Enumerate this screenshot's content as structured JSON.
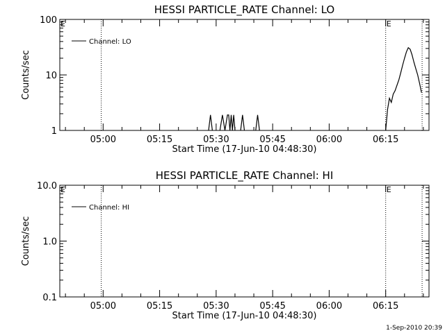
{
  "chart_data": [
    {
      "type": "line",
      "title": "HESSI PARTICLE_RATE Channel: LO",
      "xlabel": "Start Time (17-Jun-10 04:48:30)",
      "ylabel": "Counts/sec",
      "yscale": "log",
      "ylim": [
        1,
        100
      ],
      "yticks": [
        1,
        10,
        100
      ],
      "ytick_labels": [
        "1",
        "10",
        "100"
      ],
      "xlim": [
        "04:48:30",
        "06:26:30"
      ],
      "xticks": [
        "05:00",
        "05:15",
        "05:30",
        "05:45",
        "06:00",
        "06:15"
      ],
      "legend": {
        "position": "top-left",
        "entries": [
          "Channel: LO"
        ]
      },
      "vlines": [
        "04:59:30",
        "06:15:00",
        "06:24:40"
      ],
      "flags": [
        {
          "at": "04:48:30",
          "label": "E"
        },
        {
          "at": "06:15:00",
          "label": "E"
        }
      ],
      "series": [
        {
          "name": "Channel: LO",
          "segments": [
            {
              "x": [
                "05:28:00",
                "05:28:30",
                "05:29:00"
              ],
              "y": [
                1,
                1.9,
                1
              ]
            },
            {
              "x": [
                "05:31:00",
                "05:31:40",
                "05:32:20",
                "05:33:00",
                "05:33:20",
                "05:33:40",
                "05:34:00",
                "05:34:20",
                "05:34:40",
                "05:35:00"
              ],
              "y": [
                1,
                1.9,
                1,
                1.9,
                1.9,
                1,
                1.9,
                1,
                1.9,
                1
              ]
            },
            {
              "x": [
                "05:36:30",
                "05:37:00",
                "05:37:30"
              ],
              "y": [
                1,
                1.9,
                1
              ]
            },
            {
              "x": [
                "05:40:30",
                "05:41:00",
                "05:41:30"
              ],
              "y": [
                1,
                1.9,
                1
              ]
            },
            {
              "x": [
                "06:15:00",
                "06:15:30",
                "06:16:00",
                "06:16:30",
                "06:17:00",
                "06:17:30",
                "06:18:00",
                "06:18:30",
                "06:19:00",
                "06:19:30",
                "06:20:00",
                "06:20:30",
                "06:21:00",
                "06:21:30",
                "06:22:00",
                "06:22:30",
                "06:23:00",
                "06:23:30",
                "06:24:00",
                "06:24:30"
              ],
              "y": [
                1,
                2.4,
                3.8,
                3.2,
                4.5,
                5.2,
                6.5,
                8.2,
                11,
                15,
                20,
                26,
                31,
                29,
                23,
                17,
                13,
                10,
                7,
                4.8
              ]
            }
          ]
        }
      ]
    },
    {
      "type": "line",
      "title": "HESSI PARTICLE_RATE Channel: HI",
      "xlabel": "Start Time (17-Jun-10 04:48:30)",
      "ylabel": "Counts/sec",
      "yscale": "log",
      "ylim": [
        0.1,
        10
      ],
      "yticks": [
        0.1,
        1,
        10
      ],
      "ytick_labels": [
        "0.1",
        "1.0",
        "10.0"
      ],
      "xlim": [
        "04:48:30",
        "06:26:30"
      ],
      "xticks": [
        "05:00",
        "05:15",
        "05:30",
        "05:45",
        "06:00",
        "06:15"
      ],
      "legend": {
        "position": "top-left",
        "entries": [
          "Channel: HI"
        ]
      },
      "vlines": [
        "04:59:30",
        "06:15:00",
        "06:24:40"
      ],
      "flags": [
        {
          "at": "04:48:30",
          "label": "E"
        },
        {
          "at": "06:15:00",
          "label": "E"
        }
      ],
      "series": [
        {
          "name": "Channel: HI",
          "segments": []
        }
      ]
    }
  ],
  "footer": {
    "timestamp": "1-Sep-2010 20:39"
  }
}
